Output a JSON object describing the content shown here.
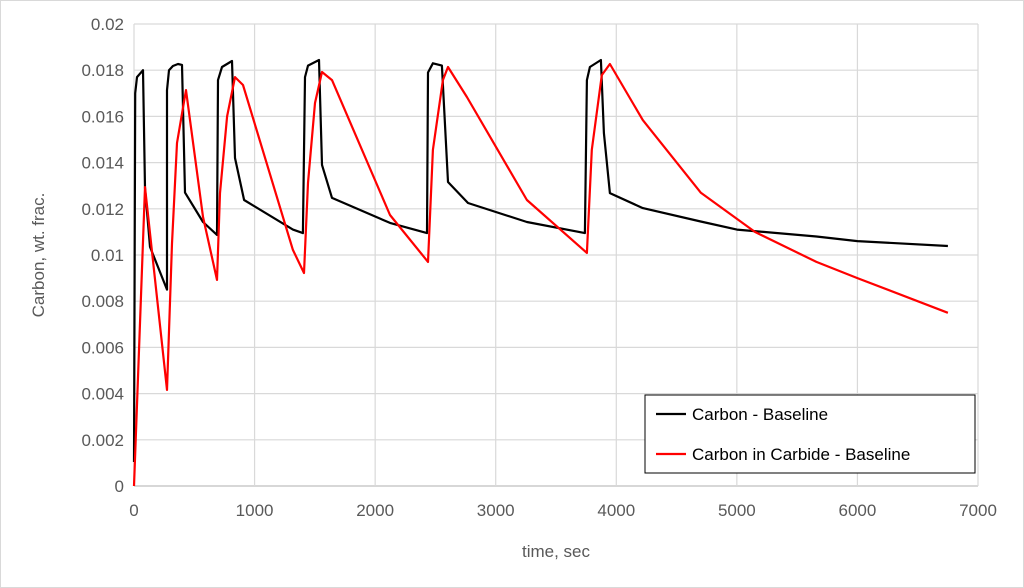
{
  "chart_data": {
    "type": "line",
    "title": "",
    "xlabel": "time, sec",
    "ylabel": "Carbon,  wt. frac.",
    "xlim": [
      0,
      7000
    ],
    "ylim": [
      0,
      0.02
    ],
    "xticks": [
      "0",
      "1000",
      "2000",
      "3000",
      "4000",
      "5000",
      "6000",
      "7000"
    ],
    "yticks": [
      "0",
      "0.002",
      "0.004",
      "0.006",
      "0.008",
      "0.01",
      "0.012",
      "0.014",
      "0.016",
      "0.018",
      "0.02"
    ],
    "grid": true,
    "legend_position": "bottom-right",
    "series": [
      {
        "name": "Carbon - Baseline",
        "color": "#000000",
        "points": [
          [
            0,
            0.00104
          ],
          [
            10,
            0.017
          ],
          [
            25,
            0.0177
          ],
          [
            75,
            0.018
          ],
          [
            91,
            0.0129
          ],
          [
            133,
            0.01035
          ],
          [
            274,
            0.0085
          ],
          [
            274,
            0.01714
          ],
          [
            290,
            0.018
          ],
          [
            323,
            0.01818
          ],
          [
            365,
            0.01827
          ],
          [
            398,
            0.01823
          ],
          [
            423,
            0.0127
          ],
          [
            572,
            0.01143
          ],
          [
            688,
            0.01087
          ],
          [
            697,
            0.01757
          ],
          [
            730,
            0.01814
          ],
          [
            813,
            0.0184
          ],
          [
            838,
            0.0142
          ],
          [
            913,
            0.01238
          ],
          [
            1318,
            0.0111
          ],
          [
            1401,
            0.01095
          ],
          [
            1418,
            0.0177
          ],
          [
            1443,
            0.0182
          ],
          [
            1534,
            0.01844
          ],
          [
            1559,
            0.0139
          ],
          [
            1642,
            0.01247
          ],
          [
            2123,
            0.01139
          ],
          [
            2430,
            0.01095
          ],
          [
            2438,
            0.0179
          ],
          [
            2479,
            0.0183
          ],
          [
            2554,
            0.0182
          ],
          [
            2604,
            0.01316
          ],
          [
            2770,
            0.01225
          ],
          [
            3259,
            0.01143
          ],
          [
            3740,
            0.01095
          ],
          [
            3756,
            0.01757
          ],
          [
            3781,
            0.01814
          ],
          [
            3872,
            0.01844
          ],
          [
            3897,
            0.01528
          ],
          [
            3947,
            0.01268
          ],
          [
            4220,
            0.01203
          ],
          [
            4700,
            0.01145
          ],
          [
            5000,
            0.0111
          ],
          [
            5660,
            0.0108
          ],
          [
            6000,
            0.0106
          ],
          [
            6750,
            0.01039
          ]
        ]
      },
      {
        "name": "Carbon in Carbide - Baseline",
        "color": "#FF0000",
        "points": [
          [
            0,
            0
          ],
          [
            91,
            0.01294
          ],
          [
            274,
            0.00416
          ],
          [
            315,
            0.0105
          ],
          [
            357,
            0.01485
          ],
          [
            431,
            0.01714
          ],
          [
            572,
            0.01165
          ],
          [
            688,
            0.00892
          ],
          [
            713,
            0.01268
          ],
          [
            772,
            0.016
          ],
          [
            838,
            0.0177
          ],
          [
            904,
            0.01736
          ],
          [
            1318,
            0.01022
          ],
          [
            1410,
            0.00922
          ],
          [
            1443,
            0.01312
          ],
          [
            1501,
            0.01658
          ],
          [
            1559,
            0.01792
          ],
          [
            1642,
            0.01757
          ],
          [
            2123,
            0.01173
          ],
          [
            2438,
            0.0097
          ],
          [
            2479,
            0.01455
          ],
          [
            2562,
            0.01757
          ],
          [
            2604,
            0.01814
          ],
          [
            2761,
            0.01684
          ],
          [
            3259,
            0.01238
          ],
          [
            3756,
            0.01009
          ],
          [
            3797,
            0.01455
          ],
          [
            3880,
            0.01779
          ],
          [
            3947,
            0.01827
          ],
          [
            4220,
            0.01584
          ],
          [
            4700,
            0.0127
          ],
          [
            5150,
            0.011
          ],
          [
            5660,
            0.0097
          ],
          [
            6000,
            0.009
          ],
          [
            6750,
            0.0075
          ]
        ]
      }
    ]
  }
}
